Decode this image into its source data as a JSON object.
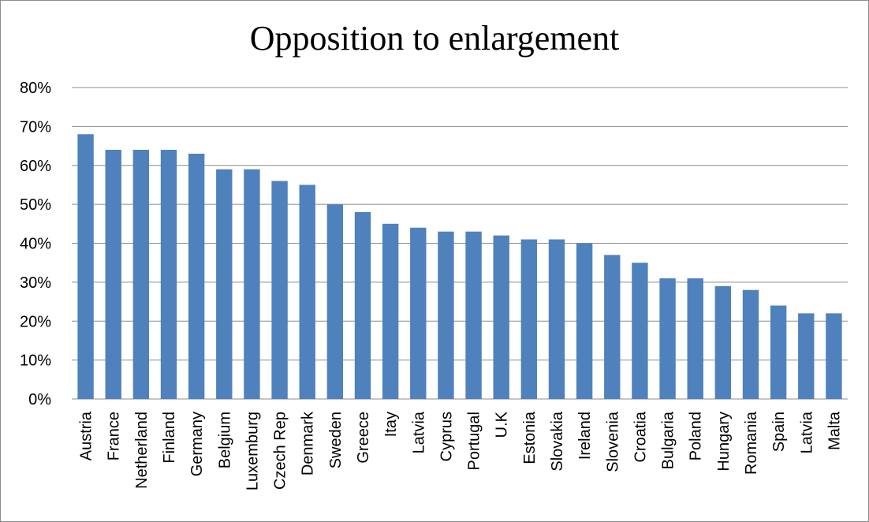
{
  "chart_data": {
    "type": "bar",
    "title": "Opposition to enlargement",
    "xlabel": "",
    "ylabel": "",
    "ylim": [
      0,
      80
    ],
    "y_tick_format": "percent",
    "y_ticks": [
      "0%",
      "10%",
      "20%",
      "30%",
      "40%",
      "50%",
      "60%",
      "70%",
      "80%"
    ],
    "grid": true,
    "legend": "none",
    "bar_color": "#4f81bd",
    "categories": [
      "Austria",
      "France",
      "Netherland",
      "Finland",
      "Germany",
      "Belgium",
      "Luxemburg",
      "Czech Rep",
      "Denmark",
      "Sweden",
      "Greece",
      "Itay",
      "Latvia",
      "Cyprus",
      "Portugal",
      "U.K",
      "Estonia",
      "Slovakia",
      "Ireland",
      "Slovenia",
      "Croatia",
      "Bulgaria",
      "Poland",
      "Hungary",
      "Romania",
      "Spain",
      "Latvia",
      "Malta"
    ],
    "values": [
      68,
      64,
      64,
      64,
      63,
      59,
      59,
      56,
      55,
      50,
      48,
      45,
      44,
      43,
      43,
      42,
      41,
      41,
      40,
      37,
      35,
      31,
      31,
      29,
      28,
      24,
      22,
      22
    ]
  }
}
